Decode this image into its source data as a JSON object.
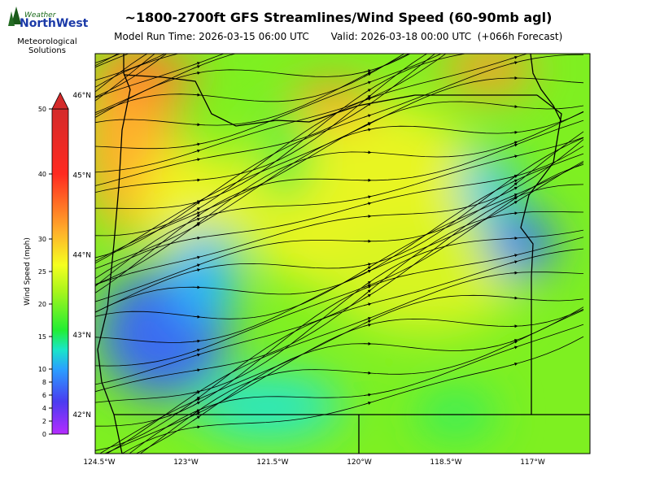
{
  "logo": {
    "top": "Weather",
    "brand": "NorthWest",
    "line1": "Meteorological",
    "line2": "Solutions"
  },
  "title": "~1800-2700ft GFS Streamlines/Wind Speed (60-90mb agl)",
  "model_run": "Model Run Time: 2026-03-15 06:00 UTC",
  "valid": "Valid: 2026-03-18 00:00 UTC  (+066h Forecast)",
  "colorbar": {
    "label": "Wind Speed (mph)",
    "ticks": [
      0,
      2,
      4,
      6,
      8,
      10,
      15,
      20,
      25,
      30,
      40,
      50
    ]
  },
  "map": {
    "lat_ticks": [
      {
        "value": 42,
        "label": "42°N"
      },
      {
        "value": 43,
        "label": "43°N"
      },
      {
        "value": 44,
        "label": "44°N"
      },
      {
        "value": 45,
        "label": "45°N"
      },
      {
        "value": 46,
        "label": "46°N"
      }
    ],
    "lon_ticks": [
      {
        "value": -124.5,
        "label": "124.5°W"
      },
      {
        "value": -123,
        "label": "123°W"
      },
      {
        "value": -121.5,
        "label": "121.5°W"
      },
      {
        "value": -120,
        "label": "120°W"
      },
      {
        "value": -118.5,
        "label": "118.5°W"
      },
      {
        "value": -117,
        "label": "117°W"
      }
    ]
  }
}
